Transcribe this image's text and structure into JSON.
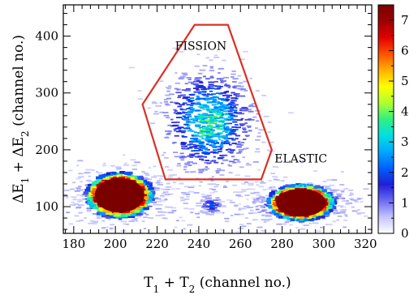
{
  "chart_data": {
    "type": "heatmap",
    "xlabel": "T1 + T2 (channel no.)",
    "ylabel": "ΔE1 + ΔE2 (channel no.)",
    "xlim": [
      175,
      323
    ],
    "ylim": [
      53,
      455
    ],
    "xticks": [
      180,
      200,
      220,
      240,
      260,
      280,
      300,
      320
    ],
    "yticks": [
      100,
      200,
      300,
      400
    ],
    "colorbar": {
      "range": [
        0,
        7.5
      ],
      "ticks": [
        0,
        1,
        2,
        3,
        4,
        5,
        6,
        7
      ],
      "colors": [
        "#ffffff",
        "#c4c4ff",
        "#6b6bf2",
        "#1f1fd6",
        "#0060ff",
        "#00a8ff",
        "#00e0e0",
        "#30f080",
        "#b0ff30",
        "#ffff00",
        "#ffb000",
        "#ff5000",
        "#e00000",
        "#9e0000",
        "#7a0000"
      ]
    },
    "annotations": [
      {
        "text": "FISSION",
        "x": 241,
        "y": 376
      },
      {
        "text": "ELASTIC",
        "x": 289,
        "y": 178
      }
    ],
    "fission_gate": {
      "color": "#d93025",
      "vertices": [
        [
          238,
          420
        ],
        [
          254,
          420
        ],
        [
          275,
          200
        ],
        [
          270,
          148
        ],
        [
          224,
          148
        ],
        [
          213,
          280
        ]
      ]
    },
    "clusters": [
      {
        "name": "",
        "center": [
          202,
          120
        ],
        "peak": 7.5
      },
      {
        "name": "",
        "center": [
          289,
          105
        ],
        "peak": 7.5
      },
      {
        "name": "",
        "center": [
          245,
          251
        ],
        "peak": 4
      },
      {
        "name": "",
        "center": [
          246,
          102
        ],
        "peak": 2
      }
    ]
  }
}
